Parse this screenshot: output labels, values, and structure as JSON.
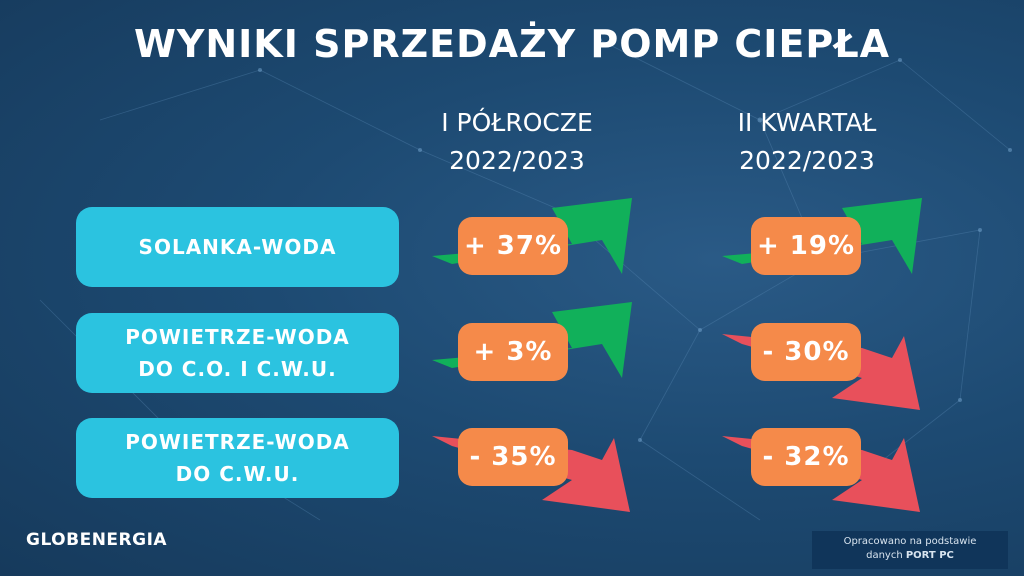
{
  "title": "WYNIKI SPRZEDAŻY POMP CIEPŁA",
  "columns": [
    {
      "line1": "I PÓŁROCZE",
      "line2": "2022/2023"
    },
    {
      "line1": "II KWARTAŁ",
      "line2": "2022/2023"
    }
  ],
  "rows": [
    {
      "line1": "SOLANKA-WODA",
      "line2": "",
      "h1": "+ 37%",
      "q2": "+ 19%",
      "h1_trend": "up",
      "q2_trend": "up"
    },
    {
      "line1": "POWIETRZE-WODA",
      "line2": "DO C.O. I C.W.U.",
      "h1": "+ 3%",
      "q2": "- 30%",
      "h1_trend": "up",
      "q2_trend": "down"
    },
    {
      "line1": "POWIETRZE-WODA",
      "line2": "DO C.W.U.",
      "h1": "- 35%",
      "q2": "- 32%",
      "h1_trend": "down",
      "q2_trend": "down"
    }
  ],
  "logo": "GLOBENERGIA",
  "source": {
    "line1": "Opracowano na podstawie",
    "line2_prefix": "danych ",
    "line2_bold": "PORT PC"
  },
  "colors": {
    "up": "#11b05a",
    "down": "#e8505b",
    "pill": "#f58a4a",
    "category": "#2bc3e0"
  }
}
